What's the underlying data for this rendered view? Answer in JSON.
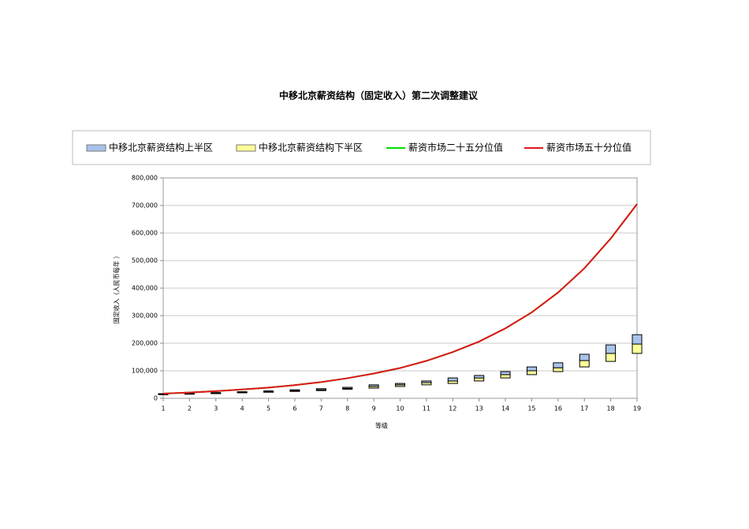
{
  "chart_data": {
    "type": "floating-bar-line",
    "title": "中移北京薪资结构（固定收入）第二次调整建议",
    "x_label": "等级",
    "y_label": "固定收入（人民币每年 ）",
    "x": [
      1,
      2,
      3,
      4,
      5,
      6,
      7,
      8,
      9,
      10,
      11,
      12,
      13,
      14,
      15,
      16,
      17,
      18,
      19
    ],
    "base": [
      13000,
      15000,
      17000,
      20000,
      22000,
      25000,
      28000,
      33000,
      37000,
      43000,
      49000,
      54000,
      63000,
      74000,
      86000,
      97000,
      114000,
      134000,
      163000
    ],
    "series": [
      {
        "name": "中移北京薪资结构上半区",
        "color": "#a9c4eb",
        "kind": "bar",
        "values": [
          2000,
          2000,
          2000,
          2000,
          3000,
          3000,
          4000,
          4000,
          6000,
          5000,
          6000,
          11000,
          9000,
          11000,
          14000,
          18000,
          23000,
          31000,
          34000
        ]
      },
      {
        "name": "中移北京薪资结构下半区",
        "color": "#ffff99",
        "kind": "bar",
        "values": [
          2000,
          2000,
          2000,
          2000,
          2000,
          3000,
          3000,
          3000,
          6000,
          6000,
          8000,
          9000,
          11000,
          12000,
          14000,
          14000,
          23000,
          29000,
          34000
        ]
      },
      {
        "name": "薪资市场二十五分位值",
        "color": "#00e000",
        "kind": "line",
        "values": [
          17000,
          21000,
          26000,
          32000,
          39000,
          48000,
          59000,
          73000,
          90000,
          110000,
          136000,
          168000,
          206000,
          254000,
          312000,
          384000,
          472000,
          580000,
          705000
        ]
      },
      {
        "name": "薪资市场五十分位值",
        "color": "#e0161a",
        "kind": "line",
        "values": [
          17000,
          21000,
          26000,
          32000,
          39000,
          48000,
          59000,
          73000,
          90000,
          110000,
          136000,
          168000,
          206000,
          254000,
          312000,
          384000,
          472000,
          580000,
          705000
        ]
      }
    ],
    "xlim": [
      1,
      19
    ],
    "xticks": [
      1,
      2,
      3,
      4,
      5,
      6,
      7,
      8,
      9,
      10,
      11,
      12,
      13,
      14,
      15,
      16,
      17,
      18,
      19
    ],
    "ylim": [
      0,
      800000
    ],
    "yticks": [
      0,
      {
        "value": 100000,
        "label": "100,000"
      },
      {
        "value": 200000,
        "label": "200,000"
      },
      {
        "value": 300000,
        "label": "300,000"
      },
      {
        "value": 400000,
        "label": "400,000"
      },
      {
        "value": 500000,
        "label": "500,000"
      },
      {
        "value": 600000,
        "label": "600,000"
      },
      {
        "value": 700000,
        "label": "700,000"
      },
      {
        "value": 800000,
        "label": "800,000"
      }
    ],
    "grid": true,
    "legend": "top"
  }
}
